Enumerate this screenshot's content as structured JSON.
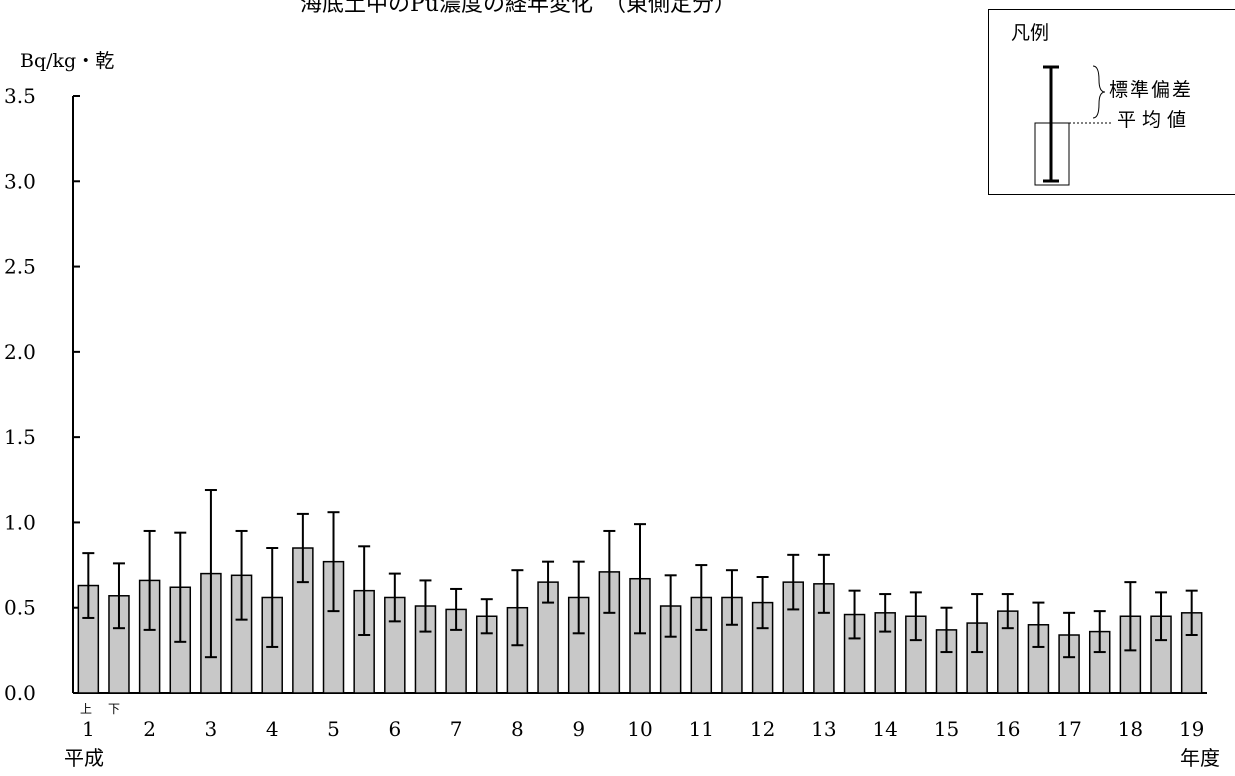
{
  "title": "海底土中のPu濃度の経年変化　（東側定分）",
  "y_unit": "Bq/kg・乾",
  "x_start_caption": "平成",
  "x_end_caption": "年度",
  "half_labels": [
    "上",
    "下"
  ],
  "legend": {
    "title": "凡例",
    "sd_label": "標準偏差",
    "mean_label": "平均値"
  },
  "chart_data": {
    "type": "bar",
    "ylim": [
      0,
      3.5
    ],
    "y_ticks": [
      "0.0",
      "0.5",
      "1.0",
      "1.5",
      "2.0",
      "2.5",
      "3.0",
      "3.5"
    ],
    "x_tick_labels": [
      "1",
      "2",
      "3",
      "4",
      "5",
      "6",
      "7",
      "8",
      "9",
      "10",
      "11",
      "12",
      "13",
      "14",
      "15",
      "16",
      "17",
      "18",
      "19"
    ],
    "bars_per_year": 2,
    "series": [
      {
        "mean": [
          0.63,
          0.57,
          0.66,
          0.62,
          0.7,
          0.69,
          0.56,
          0.85,
          0.77,
          0.6,
          0.56,
          0.51,
          0.49,
          0.45,
          0.5,
          0.65,
          0.56,
          0.71,
          0.67,
          0.51,
          0.56,
          0.56,
          0.53,
          0.65,
          0.64,
          0.46,
          0.47,
          0.45,
          0.37,
          0.41,
          0.48,
          0.4,
          0.34,
          0.36,
          0.45,
          0.45,
          0.47
        ],
        "sd": [
          0.19,
          0.19,
          0.29,
          0.32,
          0.49,
          0.26,
          0.29,
          0.2,
          0.29,
          0.26,
          0.14,
          0.15,
          0.12,
          0.1,
          0.22,
          0.12,
          0.21,
          0.24,
          0.32,
          0.18,
          0.19,
          0.16,
          0.15,
          0.16,
          0.17,
          0.14,
          0.11,
          0.14,
          0.13,
          0.17,
          0.1,
          0.13,
          0.13,
          0.12,
          0.2,
          0.14,
          0.13
        ]
      }
    ],
    "bar_color": "#c8c8c8",
    "grid": false
  }
}
